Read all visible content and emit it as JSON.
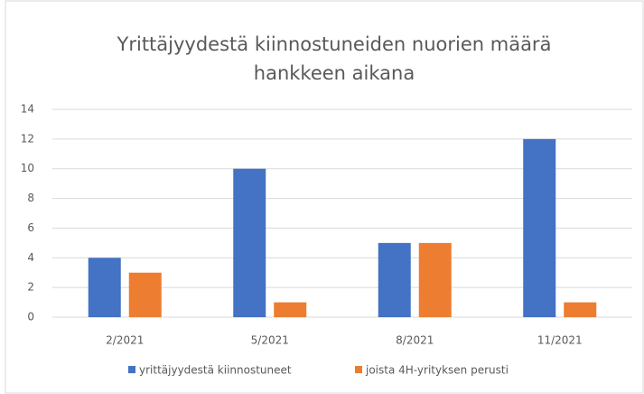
{
  "chart_data": {
    "type": "bar",
    "title": [
      "Yrittäjyydestä kiinnostuneiden nuorien määrä",
      "hankkeen aikana"
    ],
    "categories": [
      "2/2021",
      "5/2021",
      "8/2021",
      "11/2021"
    ],
    "series": [
      {
        "name": "yrittäjyydestä kiinnostuneet",
        "color": "#4472c4",
        "values": [
          4,
          10,
          5,
          12
        ]
      },
      {
        "name": "joista 4H-yrityksen perusti",
        "color": "#ed7d31",
        "values": [
          3,
          1,
          5,
          1
        ]
      }
    ],
    "ylim": [
      0,
      14
    ],
    "yticks": [
      0,
      2,
      4,
      6,
      8,
      10,
      12,
      14
    ],
    "grid": true,
    "legend": "bottom"
  }
}
